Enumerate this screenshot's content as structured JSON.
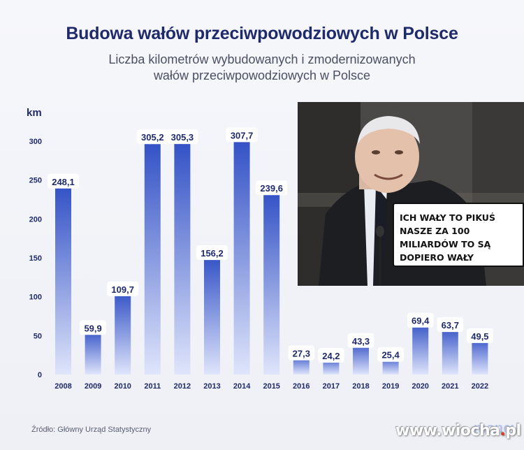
{
  "header": {
    "title": "Budowa wałów przeciwpowodziowych w Polsce",
    "subtitle_line1": "Liczba kilometrów wybudowanych i zmodernizowanych",
    "subtitle_line2": "wałów przeciwpowodziowych w Polsce"
  },
  "chart_data": {
    "type": "bar",
    "title": "Budowa wałów przeciwpowodziowych w Polsce",
    "subtitle": "Liczba kilometrów wybudowanych i zmodernizowanych wałów przeciwpowodziowych w Polsce",
    "ylabel": "km",
    "xlabel": "",
    "ylim": [
      0,
      300
    ],
    "yticks": [
      0,
      50,
      100,
      150,
      200,
      250,
      300
    ],
    "grid": false,
    "categories": [
      "2008",
      "2009",
      "2010",
      "2011",
      "2012",
      "2013",
      "2014",
      "2015",
      "2016",
      "2017",
      "2018",
      "2019",
      "2020",
      "2021",
      "2022"
    ],
    "values": [
      248.1,
      59.9,
      109.7,
      305.2,
      305.3,
      156.2,
      307.7,
      239.6,
      27.3,
      24.2,
      43.3,
      25.4,
      69.4,
      63.7,
      49.5
    ],
    "data_labels": [
      "248,1",
      "59,9",
      "109,7",
      "305,2",
      "305,3",
      "156,2",
      "307,7",
      "239,6",
      "27,3",
      "24,2",
      "43,3",
      "25,4",
      "69,4",
      "63,7",
      "49,5"
    ],
    "bar_color_top": "#2f4ec4",
    "bar_color_bottom": "#dfe5fb"
  },
  "source": {
    "text": "Źródło: Główny Urząd Statystyczny"
  },
  "overlay": {
    "speech_lines": [
      "ICH WAŁY TO PIKUŚ",
      "NASZE ZA 100",
      "MILIARDÓW TO SĄ",
      "DOPIERO WAŁY"
    ]
  },
  "watermark": {
    "prefix": "www.wiocha",
    "dot": ".",
    "suffix": "pl"
  },
  "brand": {
    "text": "money"
  }
}
